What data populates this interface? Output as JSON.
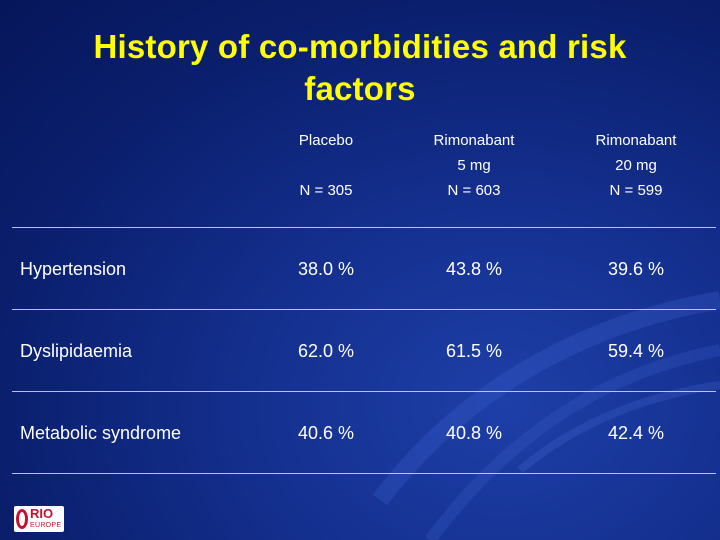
{
  "title": {
    "line1": "History of co-morbidities and risk",
    "line2": "factors"
  },
  "table": {
    "columns": [
      {
        "line1": "Placebo",
        "line2": "",
        "n": "N = 305"
      },
      {
        "line1": "Rimonabant",
        "line2": "5 mg",
        "n": "N = 603"
      },
      {
        "line1": "Rimonabant",
        "line2": "20 mg",
        "n": "N = 599"
      }
    ],
    "rows": [
      {
        "label": "Hypertension",
        "values": [
          "38.0 %",
          "43.8 %",
          "39.6 %"
        ]
      },
      {
        "label": "Dyslipidaemia",
        "values": [
          "62.0 %",
          "61.5 %",
          "59.4 %"
        ]
      },
      {
        "label": "Metabolic syndrome",
        "values": [
          "40.6 %",
          "40.8 %",
          "42.4 %"
        ]
      }
    ]
  },
  "logo": {
    "text": "RIO",
    "subtext": "EUROPE"
  },
  "colors": {
    "background": "#0a1f6e",
    "title": "#ffff00",
    "text": "#ffffff",
    "logo_red": "#c8102e"
  }
}
